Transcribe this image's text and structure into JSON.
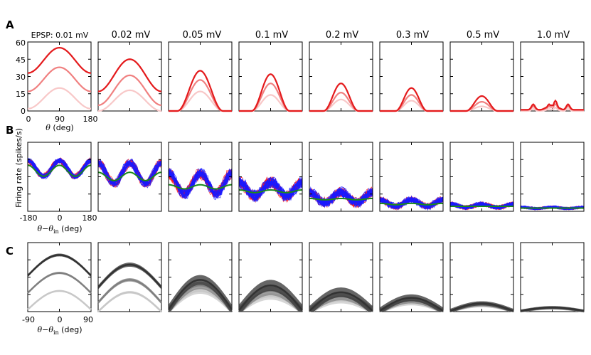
{
  "panel_labels": [
    "A",
    "B",
    "C"
  ],
  "column_titles": [
    "EPSP: 0.01 mV",
    "0.02 mV",
    "0.05 mV",
    "0.1 mV",
    "0.2 mV",
    "0.3 mV",
    "0.5 mV",
    "1.0 mV"
  ],
  "colors": {
    "red_dark": "#e41a1c",
    "red_mid": "#f08080",
    "red_light": "#f8c8c8",
    "blue": "#1a1aff",
    "red_trial": "#ff1010",
    "green": "#1a8a1a",
    "gray_dark": "#333333",
    "gray_mid": "#808080",
    "gray_light": "#c8c8c8"
  },
  "shared_ylabel": "Firing rate (spikes/s)",
  "chart_data": [
    {
      "row": "A",
      "type": "line",
      "xlabel_prefix": "θ",
      "xlabel_suffix": " (deg)",
      "xlim": [
        0,
        180
      ],
      "ylim": [
        0,
        60
      ],
      "xticks": [
        0,
        90,
        180
      ],
      "xtick_labels": [
        "0",
        "90",
        "180"
      ],
      "yticks": [
        0,
        15,
        30,
        45,
        60
      ],
      "ytick_labels": [
        "0",
        "15",
        "30",
        "45",
        "60"
      ],
      "series_per_panel": [
        "high",
        "mid",
        "low"
      ],
      "panels": [
        {
          "epsp": "0.01 mV",
          "peaks": [
            55,
            38,
            20
          ],
          "bases": [
            33,
            17,
            2
          ],
          "width": 1.0
        },
        {
          "epsp": "0.02 mV",
          "peaks": [
            45,
            31,
            18
          ],
          "bases": [
            17,
            5,
            0
          ],
          "width": 1.0
        },
        {
          "epsp": "0.05 mV",
          "peaks": [
            35,
            27,
            17
          ],
          "bases": [
            0,
            0,
            0
          ],
          "width": 0.72
        },
        {
          "epsp": "0.1 mV",
          "peaks": [
            32,
            24,
            14
          ],
          "bases": [
            0,
            0,
            0
          ],
          "width": 0.6
        },
        {
          "epsp": "0.2 mV",
          "peaks": [
            24,
            16,
            10
          ],
          "bases": [
            0,
            0,
            0
          ],
          "width": 0.55
        },
        {
          "epsp": "0.3 mV",
          "peaks": [
            20,
            14,
            9
          ],
          "bases": [
            0,
            0,
            0
          ],
          "width": 0.5
        },
        {
          "epsp": "0.5 mV",
          "peaks": [
            13,
            8,
            4
          ],
          "bases": [
            0,
            0,
            0
          ],
          "width": 0.5
        },
        {
          "epsp": "1.0 mV",
          "peaks": [
            9,
            6,
            3
          ],
          "bases": [
            1,
            1,
            0
          ],
          "width": 0.4
        }
      ]
    },
    {
      "row": "B",
      "type": "line",
      "xlabel_prefix": "θ−θ",
      "xlabel_sub": "in",
      "xlabel_suffix": " (deg)",
      "xlim": [
        -180,
        180
      ],
      "xticks": [
        -180,
        0,
        180
      ],
      "xtick_labels": [
        "-180",
        "0",
        "180"
      ],
      "series": [
        "trials_red",
        "trials_blue",
        "mean_green"
      ],
      "panels": [
        {
          "epsp": "0.01 mV",
          "mean": 0.62,
          "amp": 0.22,
          "green_amp": 0.08,
          "noise": 0.02
        },
        {
          "epsp": "0.02 mV",
          "mean": 0.55,
          "amp": 0.3,
          "green_amp": 0.06,
          "noise": 0.03
        },
        {
          "epsp": "0.05 mV",
          "mean": 0.4,
          "amp": 0.3,
          "green_amp": 0.03,
          "noise": 0.05
        },
        {
          "epsp": "0.1 mV",
          "mean": 0.32,
          "amp": 0.2,
          "green_amp": 0.02,
          "noise": 0.07
        },
        {
          "epsp": "0.2 mV",
          "mean": 0.2,
          "amp": 0.16,
          "green_amp": 0.01,
          "noise": 0.06
        },
        {
          "epsp": "0.3 mV",
          "mean": 0.12,
          "amp": 0.1,
          "green_amp": 0.01,
          "noise": 0.04
        },
        {
          "epsp": "0.5 mV",
          "mean": 0.08,
          "amp": 0.05,
          "green_amp": 0.0,
          "noise": 0.03
        },
        {
          "epsp": "1.0 mV",
          "mean": 0.05,
          "amp": 0.02,
          "green_amp": 0.0,
          "noise": 0.02
        }
      ]
    },
    {
      "row": "C",
      "type": "area",
      "xlabel_prefix": "θ−θ",
      "xlabel_sub": "in",
      "xlabel_suffix": " (deg)",
      "xlim": [
        -90,
        90
      ],
      "xticks": [
        -90,
        0,
        90
      ],
      "xtick_labels": [
        "-90",
        "0",
        "90"
      ],
      "series": [
        "dark",
        "mid",
        "light"
      ],
      "panels": [
        {
          "epsp": "0.01 mV",
          "peaks": [
            0.82,
            0.56,
            0.3
          ],
          "bases": [
            0.52,
            0.27,
            0.03
          ],
          "band": 0.02
        },
        {
          "epsp": "0.02 mV",
          "peaks": [
            0.68,
            0.46,
            0.28
          ],
          "bases": [
            0.35,
            0.13,
            0.0
          ],
          "band": 0.03
        },
        {
          "epsp": "0.05 mV",
          "peaks": [
            0.46,
            0.38,
            0.3
          ],
          "bases": [
            0.03,
            0.02,
            0.01
          ],
          "band": 0.07
        },
        {
          "epsp": "0.1 mV",
          "peaks": [
            0.38,
            0.3,
            0.22
          ],
          "bases": [
            0.02,
            0.01,
            0.01
          ],
          "band": 0.08
        },
        {
          "epsp": "0.2 mV",
          "peaks": [
            0.28,
            0.22,
            0.16
          ],
          "bases": [
            0.01,
            0.01,
            0.0
          ],
          "band": 0.07
        },
        {
          "epsp": "0.3 mV",
          "peaks": [
            0.2,
            0.16,
            0.12
          ],
          "bases": [
            0.01,
            0.0,
            0.0
          ],
          "band": 0.05
        },
        {
          "epsp": "0.5 mV",
          "peaks": [
            0.12,
            0.1,
            0.08
          ],
          "bases": [
            0.01,
            0.0,
            0.0
          ],
          "band": 0.03
        },
        {
          "epsp": "1.0 mV",
          "peaks": [
            0.06,
            0.05,
            0.04
          ],
          "bases": [
            0.01,
            0.0,
            0.0
          ],
          "band": 0.02
        }
      ]
    }
  ]
}
